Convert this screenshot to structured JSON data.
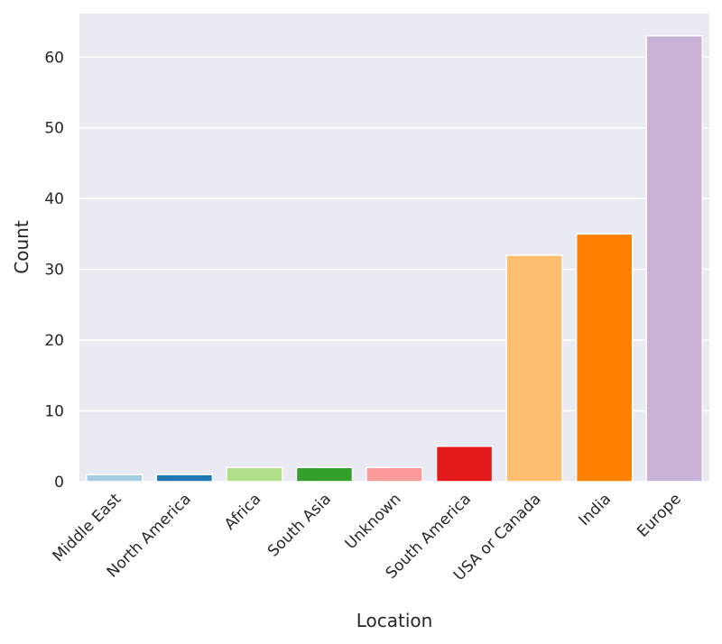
{
  "chart_data": {
    "type": "bar",
    "title": "",
    "xlabel": "Location",
    "ylabel": "Count",
    "categories": [
      "Middle East",
      "North America",
      "Africa",
      "South Asia",
      "Unknown",
      "South America",
      "USA or Canada",
      "India",
      "Europe"
    ],
    "values": [
      1,
      1,
      2,
      2,
      2,
      5,
      32,
      35,
      63
    ],
    "colors": [
      "#a6cee3",
      "#1f78b4",
      "#b2df8a",
      "#33a02c",
      "#fb9a99",
      "#e31a1c",
      "#fdbf6f",
      "#ff7f00",
      "#cab2d6"
    ],
    "ylim": [
      0,
      66.15
    ],
    "yticks": [
      0,
      10,
      20,
      30,
      40,
      50,
      60
    ],
    "grid": true,
    "background": "#eaeaf2",
    "gridColor": "#ffffff"
  }
}
